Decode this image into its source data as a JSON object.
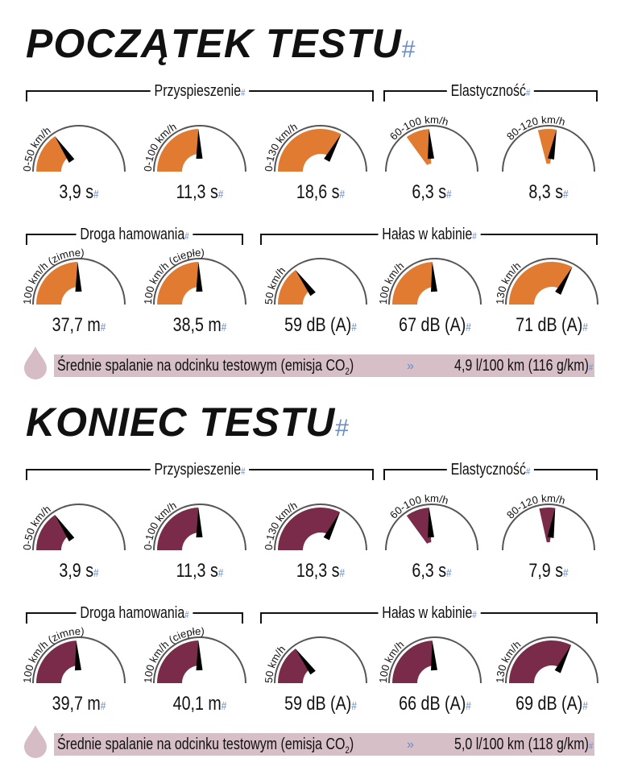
{
  "colors": {
    "start": "#e07b31",
    "end": "#7a2b4a",
    "fuel_bar": "#d7bfc8",
    "drop": "#d6bcc4",
    "arc": "#555555"
  },
  "sections": [
    {
      "title": "POCZĄTEK TESTU",
      "groups": {
        "acceleration": "Przyspieszenie",
        "elasticity": "Elastyczność",
        "braking": "Droga hamowania",
        "noise": "Hałas w kabinie"
      },
      "gauges": [
        {
          "label": "0-50 km/h",
          "value": "3,9 s",
          "from": 0,
          "to": 0.31
        },
        {
          "label": "0-100 km/h",
          "value": "11,3 s",
          "from": 0,
          "to": 0.49
        },
        {
          "label": "0-130 km/h",
          "value": "18,6 s",
          "from": 0,
          "to": 0.66
        },
        {
          "label": "60-100 km/h",
          "value": "6,3 s",
          "from": 0.3,
          "to": 0.48
        },
        {
          "label": "80-120 km/h",
          "value": "8,3 s",
          "from": 0.42,
          "to": 0.56
        },
        {
          "label": "100 km/h (zimne)",
          "value": "37,7 m",
          "from": 0,
          "to": 0.49
        },
        {
          "label": "100 km/h (ciepłe)",
          "value": "38,5 m",
          "from": 0,
          "to": 0.49
        },
        {
          "label": "50 km/h",
          "value": "59 dB (A)",
          "from": 0,
          "to": 0.3
        },
        {
          "label": "100 km/h",
          "value": "67 dB (A)",
          "from": 0,
          "to": 0.48
        },
        {
          "label": "130 km/h",
          "value": "71 dB (A)",
          "from": 0,
          "to": 0.66
        }
      ],
      "fuel": {
        "label": "Średnie spalanie na odcinku testowym (emisja CO",
        "sub": "2",
        "close": ")",
        "value": "4,9 l/100 km (116 g/km)"
      }
    },
    {
      "title": "KONIEC TESTU",
      "groups": {
        "acceleration": "Przyspieszenie",
        "elasticity": "Elastyczność",
        "braking": "Droga hamowania",
        "noise": "Hałas w kabinie"
      },
      "gauges": [
        {
          "label": "0-50 km/h",
          "value": "3,9 s",
          "from": 0,
          "to": 0.31
        },
        {
          "label": "0-100 km/h",
          "value": "11,3 s",
          "from": 0,
          "to": 0.49
        },
        {
          "label": "0-130 km/h",
          "value": "18,3 s",
          "from": 0,
          "to": 0.65
        },
        {
          "label": "60-100 km/h",
          "value": "6,3 s",
          "from": 0.3,
          "to": 0.48
        },
        {
          "label": "80-120 km/h",
          "value": "7,9 s",
          "from": 0.43,
          "to": 0.55
        },
        {
          "label": "100 km/h (zimne)",
          "value": "39,7 m",
          "from": 0,
          "to": 0.48
        },
        {
          "label": "100 km/h (ciepłe)",
          "value": "40,1 m",
          "from": 0,
          "to": 0.49
        },
        {
          "label": "50 km/h",
          "value": "59 dB (A)",
          "from": 0,
          "to": 0.3
        },
        {
          "label": "100 km/h",
          "value": "66 dB (A)",
          "from": 0,
          "to": 0.48
        },
        {
          "label": "130 km/h",
          "value": "69 dB (A)",
          "from": 0,
          "to": 0.65
        }
      ],
      "fuel": {
        "label": "Średnie spalanie na odcinku testowym (emisja CO",
        "sub": "2",
        "close": ")",
        "value": "5,0 l/100 km (118 g/km)"
      }
    }
  ]
}
